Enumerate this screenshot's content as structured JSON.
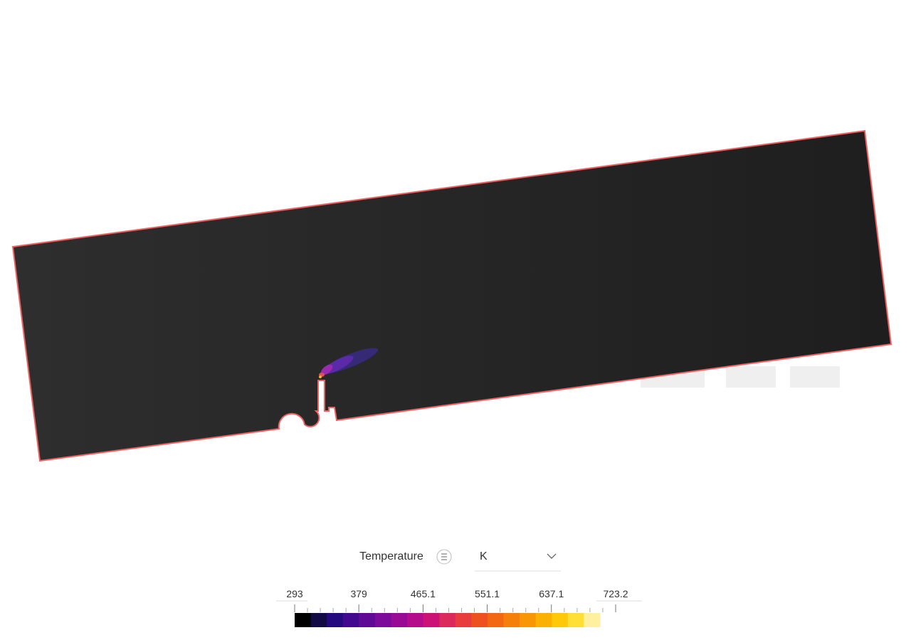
{
  "legend": {
    "title": "Temperature",
    "unit": "K",
    "ticks": [
      293,
      379,
      465.1,
      551.1,
      637.1,
      723.2
    ],
    "range": [
      293,
      723.2
    ],
    "colors": [
      "#000000",
      "#120a45",
      "#240a7e",
      "#41098f",
      "#5e0a96",
      "#7c0a9a",
      "#990a95",
      "#b40c8a",
      "#cc1277",
      "#dc2a5c",
      "#e83c3e",
      "#ef5020",
      "#f36612",
      "#f67e0a",
      "#f89606",
      "#fbb004",
      "#fdc90a",
      "#ffdf35",
      "#fff0a0"
    ]
  }
}
